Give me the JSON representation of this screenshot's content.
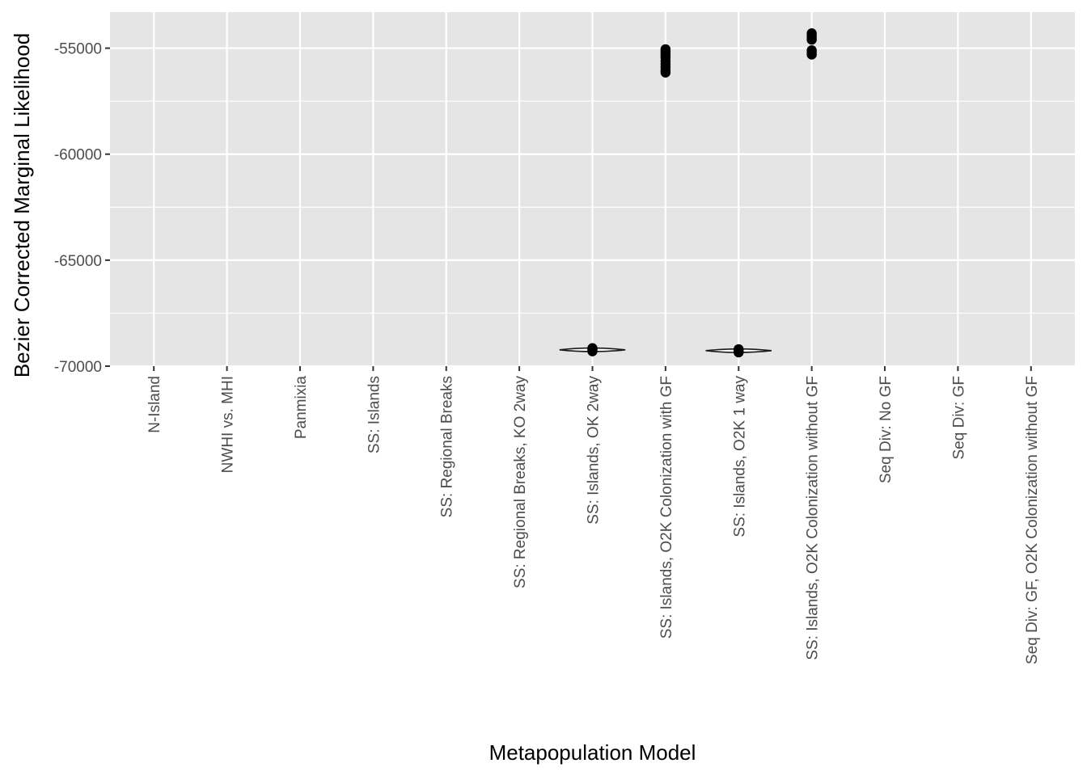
{
  "chart_data": {
    "type": "violin",
    "title": "",
    "xlabel": "Metapopulation Model",
    "ylabel": "Bezier Corrected Marginal Likelihood",
    "ylim": [
      -70000,
      -53300
    ],
    "yticks": [
      -55000,
      -60000,
      -65000,
      -70000
    ],
    "yticks_labels": [
      "-55000",
      "-60000",
      "-65000",
      "-70000"
    ],
    "grid": true,
    "legend": "none",
    "categories": [
      "N-Island",
      "NWHI vs. MHI",
      "Panmixia",
      "SS: Islands",
      "SS: Regional Breaks",
      "SS: Regional Breaks, KO 2way",
      "SS: Islands, OK 2way",
      "SS: Islands, O2K Colonization with GF",
      "SS: Islands, O2K 1 way",
      "SS: Islands, O2K Colonization without GF",
      "Seq Div: No GF",
      "Seq Div: GF",
      "Seq Div: GF, O2K Colonization without GF"
    ],
    "violins": [
      {
        "category_index": 6,
        "center": -69230,
        "half_width_category": 0.45,
        "half_height": 60
      },
      {
        "category_index": 8,
        "center": -69270,
        "half_width_category": 0.45,
        "half_height": 60
      }
    ],
    "points": [
      {
        "category_index": 6,
        "values": [
          -69150,
          -69200,
          -69260,
          -69300
        ]
      },
      {
        "category_index": 7,
        "values": [
          -55050,
          -55150,
          -55250,
          -55350,
          -55450,
          -55600,
          -55750,
          -55900,
          -56050,
          -56150
        ]
      },
      {
        "category_index": 8,
        "values": [
          -69200,
          -69250,
          -69300,
          -69350
        ]
      },
      {
        "category_index": 9,
        "values": [
          -54300,
          -54400,
          -54500,
          -54600,
          -55100,
          -55200,
          -55300
        ]
      }
    ],
    "colors": {
      "panel": "#e5e5e5",
      "grid": "#ffffff",
      "points": "#000000",
      "violin": "#1a1a1a"
    }
  }
}
